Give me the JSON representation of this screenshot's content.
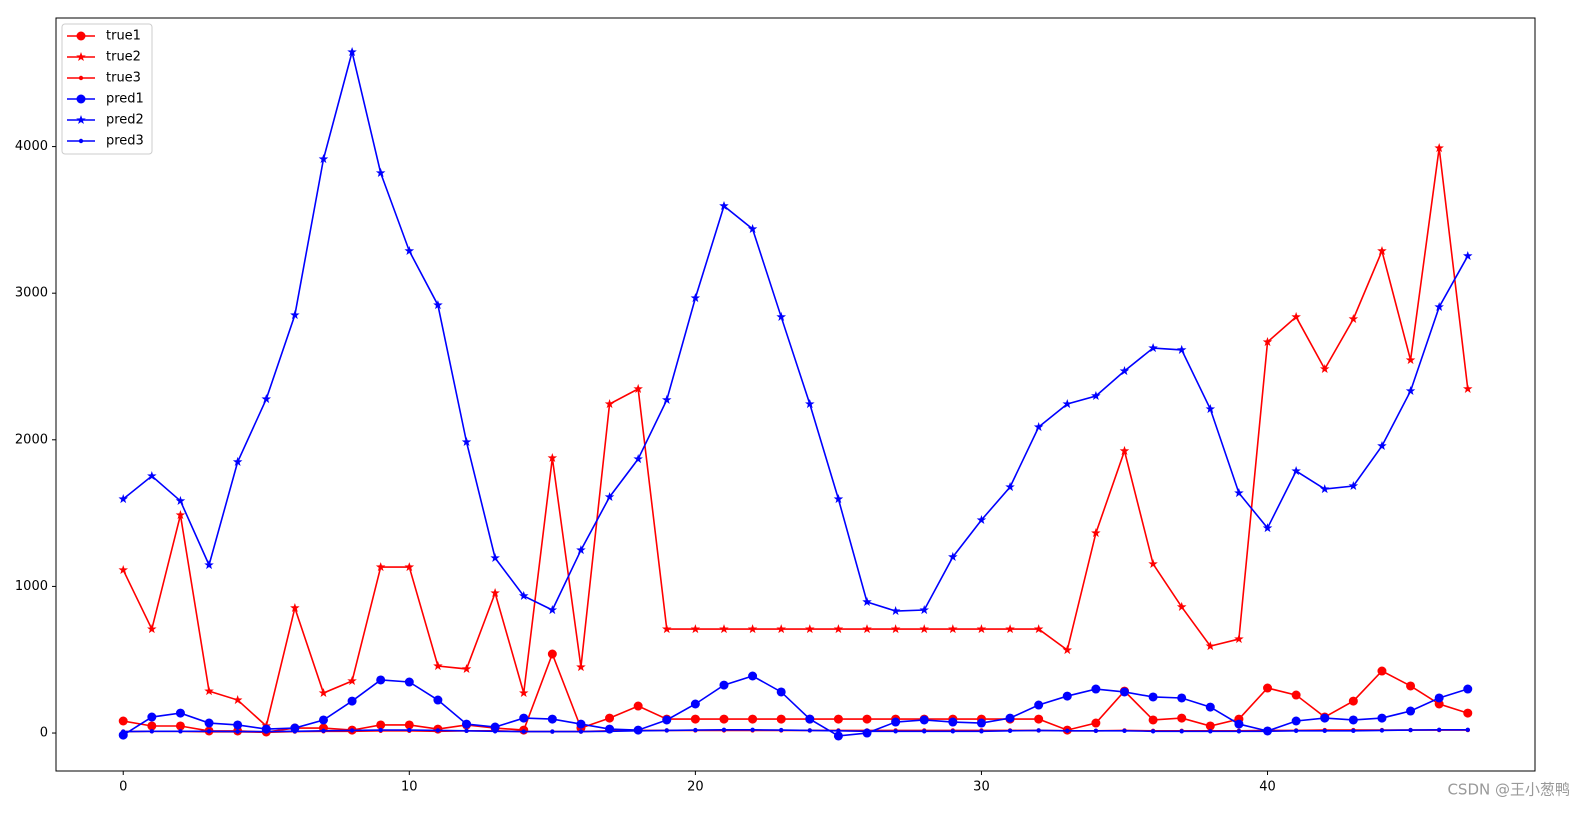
{
  "chart_data": {
    "type": "line",
    "x": [
      0,
      1,
      2,
      3,
      4,
      5,
      6,
      7,
      8,
      9,
      10,
      11,
      12,
      13,
      14,
      15,
      16,
      17,
      18,
      19,
      20,
      21,
      22,
      23,
      24,
      25,
      26,
      27,
      28,
      29,
      30,
      31,
      32,
      33,
      34,
      35,
      36,
      37,
      38,
      39,
      40,
      41,
      42,
      43,
      44,
      45,
      46,
      47
    ],
    "series": [
      {
        "name": "true1",
        "color": "#ff0000",
        "marker": "circle",
        "values": [
          82,
          48,
          48,
          14,
          14,
          7,
          34,
          34,
          20,
          55,
          55,
          27,
          55,
          34,
          20,
          539,
          34,
          102,
          184,
          95,
          95,
          95,
          95,
          95,
          95,
          95,
          95,
          95,
          95,
          95,
          95,
          95,
          95,
          20,
          68,
          286,
          89,
          102,
          48,
          95,
          307,
          259,
          109,
          218,
          423,
          321,
          198,
          136
        ]
      },
      {
        "name": "true2",
        "color": "#ff0000",
        "marker": "star",
        "values": [
          1112,
          709,
          1487,
          286,
          225,
          48,
          853,
          273,
          355,
          1132,
          1132,
          457,
          437,
          955,
          273,
          1876,
          450,
          2244,
          2347,
          709,
          709,
          709,
          709,
          709,
          709,
          709,
          709,
          709,
          709,
          709,
          709,
          709,
          709,
          566,
          1364,
          1924,
          1153,
          860,
          593,
          641,
          2667,
          2838,
          2483,
          2824,
          3288,
          2544,
          3990,
          2347
        ]
      },
      {
        "name": "true3",
        "color": "#ff0000",
        "marker": "point",
        "values": [
          10,
          12,
          12,
          8,
          8,
          5,
          10,
          12,
          12,
          15,
          15,
          12,
          15,
          15,
          10,
          10,
          10,
          15,
          18,
          18,
          18,
          18,
          18,
          18,
          18,
          18,
          18,
          18,
          18,
          18,
          18,
          18,
          18,
          15,
          15,
          18,
          15,
          15,
          15,
          15,
          18,
          18,
          20,
          20,
          20,
          20,
          20,
          20
        ]
      },
      {
        "name": "pred1",
        "color": "#0000ff",
        "marker": "circle",
        "values": [
          -14,
          109,
          136,
          68,
          55,
          27,
          34,
          89,
          218,
          362,
          348,
          225,
          61,
          41,
          102,
          95,
          61,
          27,
          20,
          89,
          198,
          327,
          389,
          280,
          95,
          -20,
          0,
          75,
          89,
          75,
          68,
          102,
          191,
          252,
          300,
          280,
          246,
          239,
          177,
          61,
          14,
          82,
          102,
          89,
          102,
          150,
          239,
          300
        ]
      },
      {
        "name": "pred2",
        "color": "#0000ff",
        "marker": "star",
        "values": [
          1596,
          1753,
          1583,
          1146,
          1849,
          2278,
          2851,
          3915,
          4645,
          3820,
          3288,
          2919,
          1985,
          1194,
          935,
          839,
          1248,
          1610,
          1869,
          2272,
          2967,
          3595,
          3438,
          2838,
          2244,
          1596,
          894,
          832,
          839,
          1201,
          1453,
          1678,
          2087,
          2244,
          2299,
          2469,
          2626,
          2613,
          2210,
          1637,
          1398,
          1787,
          1664,
          1685,
          1958,
          2333,
          2906,
          3254
        ]
      },
      {
        "name": "pred3",
        "color": "#0000ff",
        "marker": "point",
        "values": [
          10,
          12,
          12,
          12,
          10,
          10,
          12,
          15,
          18,
          20,
          20,
          18,
          15,
          12,
          10,
          10,
          10,
          12,
          15,
          18,
          20,
          22,
          22,
          20,
          18,
          15,
          12,
          12,
          12,
          12,
          12,
          15,
          18,
          15,
          15,
          15,
          12,
          12,
          12,
          12,
          12,
          15,
          15,
          15,
          18,
          20,
          22,
          22
        ]
      }
    ],
    "xlim": [
      -2.35,
      49.35
    ],
    "xticks": [
      0,
      10,
      20,
      30,
      40
    ],
    "ylim": [
      -259,
      4877
    ],
    "yticks": [
      0,
      1000,
      2000,
      3000,
      4000
    ],
    "grid": false,
    "legend": "upper-left",
    "watermark": "CSDN @王小葱鸭"
  }
}
